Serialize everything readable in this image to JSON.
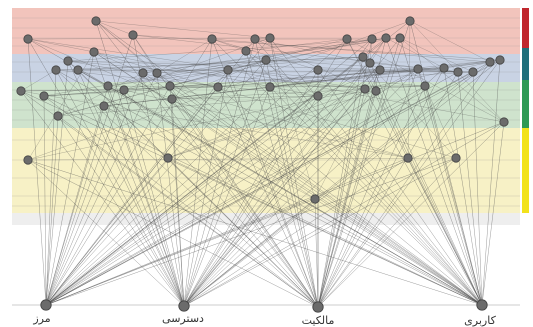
{
  "base_nodes": [
    {
      "id": "b1",
      "label": "مرز"
    },
    {
      "id": "b2",
      "label": "دسترسی"
    },
    {
      "id": "b3",
      "label": "مالکیت"
    },
    {
      "id": "b4",
      "label": "کاربری"
    }
  ],
  "colors": {
    "band_red": "#f2c4bc",
    "band_blue": "#c9d3e4",
    "band_green": "#cfe3cd",
    "band_yellow": "#f7f1c6",
    "band_grey": "#eeeeee",
    "bar_red": "#c0272d",
    "bar_teal": "#1f6f7a",
    "bar_green": "#2f9a55",
    "bar_yellow": "#f2e21c",
    "node_fill": "#6b6b6b",
    "node_stroke": "#444444",
    "edge": "#4a4a4a"
  }
}
